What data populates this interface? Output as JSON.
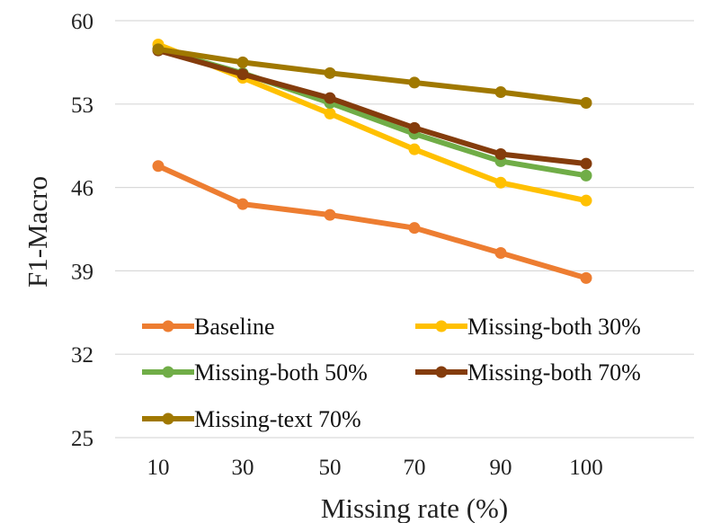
{
  "chart_data": {
    "type": "line",
    "title": "",
    "xlabel": "Missing rate (%)",
    "ylabel": "F1-Macro",
    "categories": [
      "10",
      "30",
      "50",
      "70",
      "90",
      "100"
    ],
    "ylim": [
      25,
      60
    ],
    "yticks": [
      "25",
      "32",
      "39",
      "46",
      "53",
      "60"
    ],
    "grid": true,
    "legend_placement": "bottom-inside",
    "series": [
      {
        "name": "Baseline",
        "color": "#ED7D31",
        "values": [
          47.8,
          44.6,
          43.7,
          42.6,
          40.5,
          38.4
        ]
      },
      {
        "name": "Missing-both 30%",
        "color": "#FFC000",
        "values": [
          58.0,
          55.2,
          52.2,
          49.2,
          46.4,
          44.9
        ]
      },
      {
        "name": "Missing-both 50%",
        "color": "#70AD47",
        "values": [
          57.6,
          55.6,
          53.1,
          50.5,
          48.2,
          47.0
        ]
      },
      {
        "name": "Missing-both 70%",
        "color": "#843C0C",
        "values": [
          57.5,
          55.5,
          53.5,
          51.0,
          48.8,
          48.0
        ]
      },
      {
        "name": "Missing-text 70%",
        "color": "#A07800",
        "values": [
          57.6,
          56.5,
          55.6,
          54.8,
          54.0,
          53.1
        ]
      }
    ]
  }
}
